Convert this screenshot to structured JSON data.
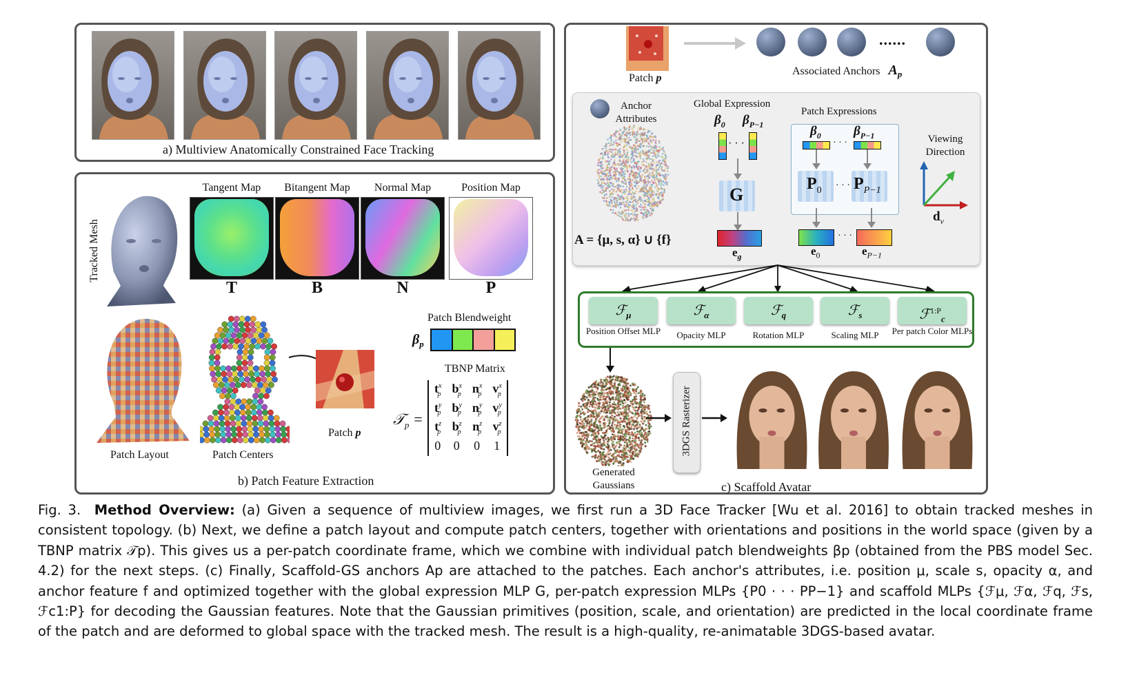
{
  "panel_a": {
    "caption": "a) Multiview Anatomically Constrained Face Tracking"
  },
  "panel_b": {
    "caption": "b) Patch Feature Extraction",
    "tracked_mesh_label": "Tracked Mesh",
    "maps": [
      {
        "title": "Tangent Map",
        "letter": "T"
      },
      {
        "title": "Bitangent Map",
        "letter": "B"
      },
      {
        "title": "Normal Map",
        "letter": "N"
      },
      {
        "title": "Position Map",
        "letter": "P"
      }
    ],
    "patch_layout_label": "Patch Layout",
    "patch_centers_label": "Patch Centers",
    "patch_label": "Patch",
    "patch_symbol": "p",
    "blendweight_title": "Patch Blendweight",
    "blendweight_symbol": "β",
    "blendweight_sub": "p",
    "blendweight_colors": [
      "#2196f3",
      "#7ee84f",
      "#f4a09a",
      "#f5ef5a"
    ],
    "tbnp_title": "TBNP Matrix",
    "tbnp_symbol": "𝒯",
    "tbnp_sub": "p",
    "tbnp_rows": [
      [
        "t",
        "b",
        "n",
        "v"
      ],
      [
        "t",
        "b",
        "n",
        "v"
      ],
      [
        "t",
        "b",
        "n",
        "v"
      ],
      [
        "0",
        "0",
        "0",
        "1"
      ]
    ],
    "tbnp_sups": [
      "x",
      "y",
      "z"
    ]
  },
  "panel_c": {
    "caption": "c) Scaffold Avatar",
    "patch_label": "Patch",
    "patch_symbol": "p",
    "associated_anchors": "Associated Anchors",
    "anchors_symbol": "A",
    "anchors_sub": "p",
    "ellipsis": "......",
    "anchor_attributes": "Anchor Attributes",
    "global_expression": "Global Expression",
    "patch_expressions": "Patch Expressions",
    "beta0": "β",
    "beta0_sub": "0",
    "betaP": "β",
    "betaP_sub": "P−1",
    "g_label": "G",
    "p0_label": "P",
    "p0_sub": "0",
    "pP_label": "P",
    "pP_sub": "P−1",
    "eg": "e",
    "eg_sub": "g",
    "e0": "e",
    "e0_sub": "0",
    "eP": "e",
    "eP_sub": "P−1",
    "anchor_formula": "A = {μ, s, α} ∪ {f}",
    "viewing_direction": "Viewing Direction",
    "dv": "d",
    "dv_sub": "v",
    "mlps": [
      {
        "symbol": "ℱ",
        "sub": "μ",
        "sup": "",
        "label": "Position Offset MLP"
      },
      {
        "symbol": "ℱ",
        "sub": "α",
        "sup": "",
        "label": "Opacity MLP"
      },
      {
        "symbol": "ℱ",
        "sub": "q",
        "sup": "",
        "label": "Rotation MLP"
      },
      {
        "symbol": "ℱ",
        "sub": "s",
        "sup": "",
        "label": "Scaling MLP"
      },
      {
        "symbol": "ℱ",
        "sub": "c",
        "sup": "1:P",
        "label": "Per patch Color MLPs"
      }
    ],
    "generated_gaussians": "Generated Gaussians",
    "rasterizer": "3DGS Rasterizer"
  },
  "caption": {
    "fig": "Fig. 3.",
    "title": "Method Overview:",
    "text": "(a) Given a sequence of multiview images, we first run a 3D Face Tracker [Wu et al. 2016] to obtain tracked meshes in consistent topology. (b) Next, we define a patch layout and compute patch centers, together with orientations and positions in the world space (given by a TBNP matrix 𝒯p). This gives us a per-patch coordinate frame, which we combine with individual patch blendweights βp (obtained from the PBS model Sec. 4.2) for the next steps. (c) Finally, Scaffold-GS anchors Ap are attached to the patches. Each anchor's attributes, i.e. position μ, scale s, opacity α, and anchor feature f and optimized together with the global expression MLP G, per-patch expression MLPs {P0 · · · PP−1} and scaffold MLPs {ℱμ, ℱα, ℱq, ℱs, ℱc1:P} for decoding the Gaussian features. Note that the Gaussian primitives (position, scale, and orientation) are predicted in the local coordinate frame of the patch and are deformed to global space with the tracked mesh. The result is a high-quality, re-animatable 3DGS-based avatar."
  }
}
